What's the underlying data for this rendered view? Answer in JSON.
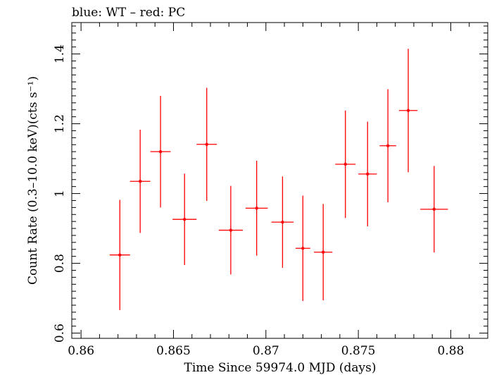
{
  "chart_data": {
    "type": "scatter",
    "title": "blue: WT – red: PC",
    "xlabel": "Time Since 59974.0 MJD (days)",
    "ylabel": "Count Rate (0.3–10.0 keV)(cts s⁻¹)",
    "xlim": [
      0.8595,
      0.882
    ],
    "ylim": [
      0.585,
      1.49
    ],
    "x_ticks": [
      0.86,
      0.865,
      0.87,
      0.875,
      0.88
    ],
    "x_tick_labels": [
      "0.86",
      "0.865",
      "0.87",
      "0.875",
      "0.88"
    ],
    "y_ticks": [
      0.6,
      0.8,
      1.0,
      1.2,
      1.4
    ],
    "y_tick_labels": [
      "0.6",
      "0.8",
      "1",
      "1.2",
      "1.4"
    ],
    "grid": false,
    "series": [
      {
        "color": "#ff0000",
        "points": [
          {
            "x": 0.8621,
            "xerr": 0.00055,
            "y": 0.824,
            "yerr": 0.158
          },
          {
            "x": 0.8632,
            "xerr": 0.00055,
            "y": 1.035,
            "yerr": 0.148
          },
          {
            "x": 0.8643,
            "xerr": 0.00055,
            "y": 1.12,
            "yerr": 0.16
          },
          {
            "x": 0.8656,
            "xerr": 0.00065,
            "y": 0.926,
            "yerr": 0.131
          },
          {
            "x": 0.8668,
            "xerr": 0.00055,
            "y": 1.141,
            "yerr": 0.162
          },
          {
            "x": 0.8681,
            "xerr": 0.00065,
            "y": 0.895,
            "yerr": 0.127
          },
          {
            "x": 0.8695,
            "xerr": 0.0006,
            "y": 0.958,
            "yerr": 0.136
          },
          {
            "x": 0.8709,
            "xerr": 0.0006,
            "y": 0.918,
            "yerr": 0.131
          },
          {
            "x": 0.872,
            "xerr": 0.0004,
            "y": 0.843,
            "yerr": 0.151
          },
          {
            "x": 0.8731,
            "xerr": 0.0005,
            "y": 0.832,
            "yerr": 0.138
          },
          {
            "x": 0.8743,
            "xerr": 0.00055,
            "y": 1.084,
            "yerr": 0.154
          },
          {
            "x": 0.8755,
            "xerr": 0.0005,
            "y": 1.056,
            "yerr": 0.15
          },
          {
            "x": 0.8766,
            "xerr": 0.00045,
            "y": 1.137,
            "yerr": 0.162
          },
          {
            "x": 0.8777,
            "xerr": 0.0005,
            "y": 1.238,
            "yerr": 0.177
          },
          {
            "x": 0.8791,
            "xerr": 0.00075,
            "y": 0.955,
            "yerr": 0.124
          }
        ]
      }
    ]
  }
}
